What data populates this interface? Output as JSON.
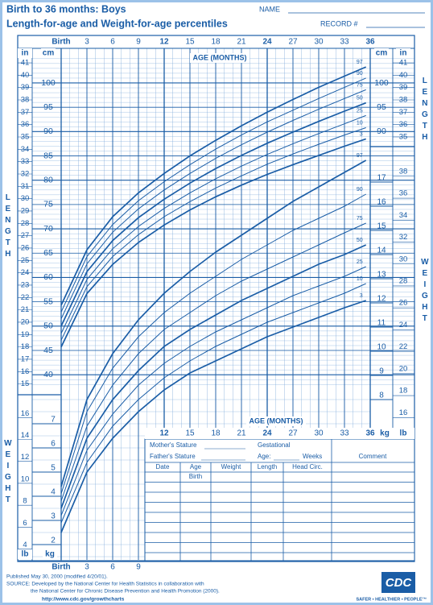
{
  "header": {
    "title": "Birth to 36 months: Boys",
    "subtitle": "Length-for-age and Weight-for-age percentiles",
    "name_label": "NAME",
    "record_label": "RECORD #"
  },
  "chart_data": [
    {
      "type": "line",
      "xlabel": "AGE (MONTHS)",
      "ylabel": "LENGTH",
      "y_unit": "cm",
      "y2_unit": "in",
      "color": "#1a5da6",
      "x": [
        0,
        3,
        6,
        9,
        12,
        15,
        18,
        21,
        24,
        27,
        30,
        33,
        35.5
      ],
      "xlim": [
        0,
        36
      ],
      "xticks": [
        {
          "value": 0,
          "label": "Birth"
        },
        3,
        6,
        9,
        12,
        15,
        18,
        21,
        24,
        27,
        30,
        33,
        36
      ],
      "ylim": [
        37.5,
        105
      ],
      "yticks": [
        40,
        45,
        50,
        55,
        60,
        65,
        70,
        75,
        80,
        85,
        90,
        95,
        100
      ],
      "y2lim": [
        14.76,
        41.34
      ],
      "y2ticks": [
        15,
        16,
        17,
        18,
        19,
        20,
        21,
        22,
        23,
        24,
        25,
        26,
        27,
        28,
        29,
        30,
        31,
        32,
        33,
        34,
        35,
        36,
        37,
        38,
        39,
        40,
        41
      ],
      "series": [
        {
          "name": "97",
          "values": [
            54.3,
            65.7,
            72.5,
            77.4,
            81.4,
            85.0,
            88.2,
            91.2,
            94.0,
            96.6,
            99.1,
            101.4,
            103.3
          ]
        },
        {
          "name": "90",
          "values": [
            52.9,
            64.3,
            70.9,
            75.8,
            79.7,
            83.2,
            86.4,
            89.3,
            92.0,
            94.4,
            96.8,
            99.1,
            101.0
          ]
        },
        {
          "name": "75",
          "values": [
            51.5,
            62.8,
            69.3,
            74.1,
            78.0,
            81.4,
            84.5,
            87.3,
            89.9,
            92.3,
            94.6,
            96.8,
            98.6
          ]
        },
        {
          "name": "50",
          "values": [
            50.0,
            61.2,
            67.6,
            72.3,
            76.1,
            79.4,
            82.4,
            85.1,
            87.6,
            89.9,
            92.1,
            94.2,
            95.9
          ]
        },
        {
          "name": "25",
          "values": [
            48.5,
            59.6,
            65.9,
            70.5,
            74.2,
            77.4,
            80.3,
            82.9,
            85.3,
            87.5,
            89.6,
            91.6,
            93.3
          ]
        },
        {
          "name": "10",
          "values": [
            47.1,
            58.1,
            64.3,
            68.8,
            72.5,
            75.6,
            78.4,
            80.9,
            83.3,
            85.4,
            87.4,
            89.3,
            90.8
          ]
        },
        {
          "name": "3",
          "values": [
            45.7,
            56.7,
            62.7,
            67.2,
            70.8,
            73.9,
            76.6,
            79.0,
            81.2,
            83.2,
            85.1,
            87.0,
            88.5
          ]
        }
      ]
    },
    {
      "type": "line",
      "xlabel": "AGE (MONTHS)",
      "ylabel": "WEIGHT",
      "y_unit": "kg",
      "y2_unit": "lb",
      "color": "#1a5da6",
      "x": [
        0,
        3,
        6,
        9,
        12,
        15,
        18,
        21,
        24,
        27,
        30,
        33,
        35.5
      ],
      "xlim": [
        0,
        36
      ],
      "xticks": [
        {
          "value": 0,
          "label": "Birth"
        },
        3,
        6,
        9,
        12,
        15,
        18,
        21,
        24,
        27,
        30,
        33,
        36
      ],
      "ylim": [
        1.5,
        18
      ],
      "yticks": [
        2,
        3,
        4,
        5,
        6,
        7,
        8,
        9,
        10,
        11,
        12,
        13,
        14,
        15,
        16,
        17
      ],
      "y2lim": [
        3.31,
        39.68
      ],
      "y2ticks": [
        4,
        6,
        8,
        10,
        12,
        14,
        16,
        18,
        20,
        22,
        24,
        26,
        28,
        30,
        32,
        34,
        36,
        38
      ],
      "series": [
        {
          "name": "97",
          "values": [
            4.4,
            8.0,
            9.9,
            11.3,
            12.4,
            13.3,
            14.1,
            14.8,
            15.5,
            16.2,
            16.8,
            17.4,
            17.9
          ]
        },
        {
          "name": "90",
          "values": [
            4.1,
            7.5,
            9.3,
            10.6,
            11.6,
            12.4,
            13.1,
            13.8,
            14.4,
            15.0,
            15.5,
            16.0,
            16.5
          ]
        },
        {
          "name": "75",
          "values": [
            3.8,
            6.9,
            8.6,
            9.9,
            10.9,
            11.6,
            12.3,
            12.9,
            13.4,
            13.9,
            14.4,
            14.9,
            15.3
          ]
        },
        {
          "name": "50",
          "values": [
            3.5,
            6.4,
            8.0,
            9.2,
            10.2,
            10.9,
            11.5,
            12.1,
            12.6,
            13.1,
            13.6,
            14.0,
            14.4
          ]
        },
        {
          "name": "25",
          "values": [
            3.2,
            5.9,
            7.4,
            8.6,
            9.5,
            10.2,
            10.8,
            11.3,
            11.8,
            12.3,
            12.7,
            13.1,
            13.5
          ]
        },
        {
          "name": "10",
          "values": [
            2.9,
            5.4,
            6.9,
            8.0,
            8.9,
            9.6,
            10.2,
            10.7,
            11.2,
            11.6,
            12.0,
            12.4,
            12.8
          ]
        },
        {
          "name": "3",
          "values": [
            2.5,
            5.0,
            6.4,
            7.5,
            8.4,
            9.1,
            9.6,
            10.1,
            10.6,
            11.0,
            11.4,
            11.8,
            12.1
          ]
        }
      ]
    }
  ],
  "table": {
    "mothers_stature": "Mother's Stature",
    "fathers_stature": "Father's Stature",
    "gestational": "Gestational",
    "age": "Age:",
    "weeks": "Weeks",
    "comment": "Comment",
    "columns": [
      "Date",
      "Age",
      "Weight",
      "Length",
      "Head Circ."
    ],
    "first_row_age": "Birth"
  },
  "footer": {
    "published": "Published May 30, 2000 (modified 4/20/01).",
    "source_1": "SOURCE: Developed by the National Center for Health Statistics in collaboration with",
    "source_2": "the National Center for Chronic Disease Prevention and Health Promotion (2000).",
    "url": "http://www.cdc.gov/growthcharts",
    "logo": "CDC",
    "slogan": "SAFER • HEALTHIER • PEOPLE™"
  }
}
